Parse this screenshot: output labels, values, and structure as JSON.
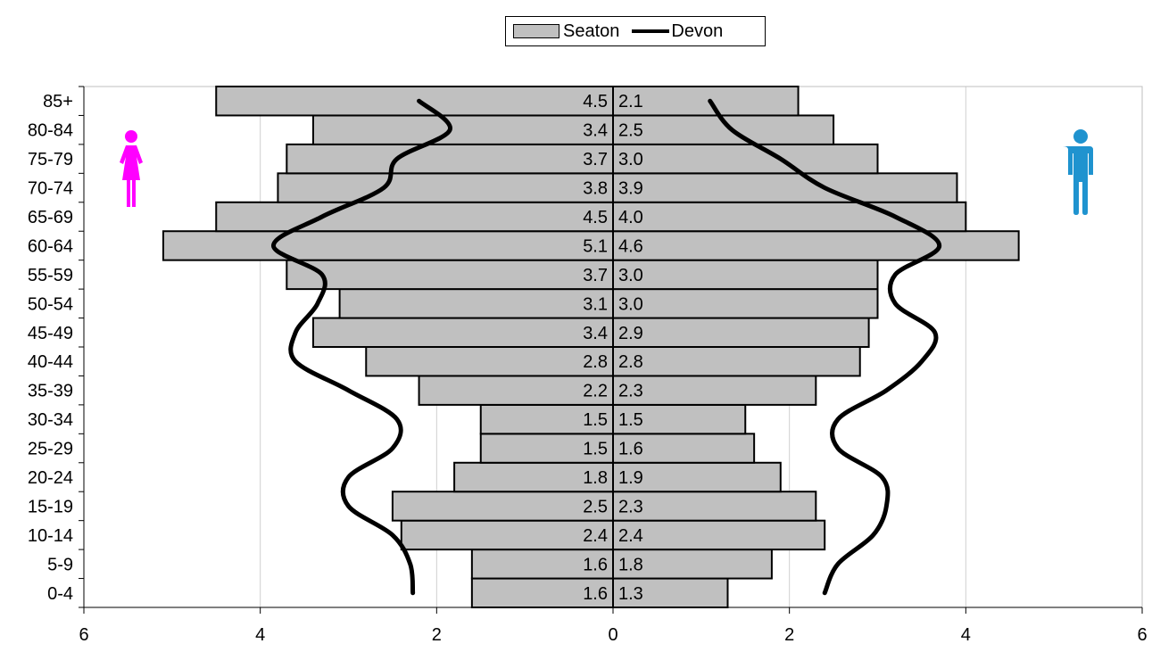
{
  "chart_data": {
    "type": "bar",
    "orientation": "horizontal-population-pyramid",
    "categories": [
      "0-4",
      "5-9",
      "10-14",
      "15-19",
      "20-24",
      "25-29",
      "30-34",
      "35-39",
      "40-44",
      "45-49",
      "50-54",
      "55-59",
      "60-64",
      "65-69",
      "70-74",
      "75-79",
      "80-84",
      "85+"
    ],
    "series": [
      {
        "name": "Seaton",
        "kind": "bar",
        "side": "left-female",
        "values": [
          1.6,
          1.6,
          2.4,
          2.5,
          1.8,
          1.5,
          1.5,
          2.2,
          2.8,
          3.4,
          3.1,
          3.7,
          5.1,
          4.5,
          3.8,
          3.7,
          3.4,
          4.5
        ]
      },
      {
        "name": "Seaton",
        "kind": "bar",
        "side": "right-male",
        "values": [
          1.3,
          1.8,
          2.4,
          2.3,
          1.9,
          1.6,
          1.5,
          2.3,
          2.8,
          2.9,
          3.0,
          3.0,
          4.6,
          4.0,
          3.9,
          3.0,
          2.5,
          2.1
        ]
      },
      {
        "name": "Devon",
        "kind": "line",
        "side": "left-female",
        "values": [
          2.27,
          2.3,
          2.5,
          3.0,
          3.0,
          2.5,
          2.45,
          3.0,
          3.6,
          3.6,
          3.35,
          3.3,
          3.85,
          3.3,
          2.6,
          2.45,
          1.85,
          2.2
        ]
      },
      {
        "name": "Devon",
        "kind": "line",
        "side": "right-male",
        "values": [
          2.4,
          2.55,
          2.95,
          3.1,
          3.05,
          2.55,
          2.55,
          3.1,
          3.5,
          3.65,
          3.2,
          3.2,
          3.7,
          3.2,
          2.4,
          1.9,
          1.35,
          1.1
        ]
      }
    ],
    "data_labels_left": [
      "1.6",
      "1.6",
      "2.4",
      "2.5",
      "1.8",
      "1.5",
      "1.5",
      "2.2",
      "2.8",
      "3.4",
      "3.1",
      "3.7",
      "5.1",
      "4.5",
      "3.8",
      "3.7",
      "3.4",
      "4.5"
    ],
    "data_labels_right": [
      "1.3",
      "1.8",
      "2.4",
      "2.3",
      "1.9",
      "1.6",
      "1.5",
      "2.3",
      "2.8",
      "2.9",
      "3.0",
      "3.0",
      "4.6",
      "4.0",
      "3.9",
      "3.0",
      "2.5",
      "2.1"
    ],
    "x_ticks": [
      -6,
      -4,
      -2,
      0,
      2,
      4,
      6
    ],
    "x_tick_labels": [
      "6",
      "4",
      "2",
      "0",
      "2",
      "4",
      "6"
    ],
    "xlim": [
      -6,
      6
    ],
    "grid": "vertical",
    "legend_position": "top-center",
    "legend": [
      "Seaton",
      "Devon"
    ],
    "title": "",
    "xlabel": "",
    "ylabel": ""
  },
  "colors": {
    "bar_fill": "#c0c0c0",
    "line": "#000000",
    "female_icon": "#ff00ff",
    "male_icon": "#1f93cf",
    "grid": "#d0d0d0"
  },
  "icons": {
    "female": "female-figure-icon",
    "male": "male-figure-icon"
  },
  "legend_labels": {
    "bar": "Seaton",
    "line": "Devon"
  }
}
